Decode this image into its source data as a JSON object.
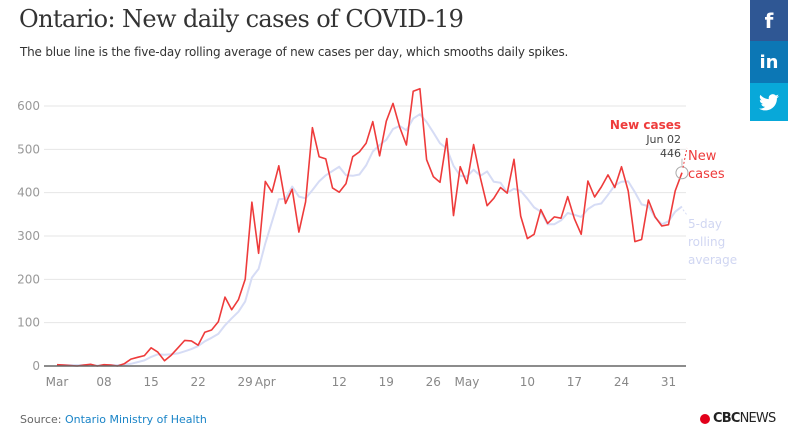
{
  "header": {
    "title": "Ontario: New daily cases of COVID-19",
    "subtitle": "The blue line is the five-day rolling average of new cases per day, which smooths daily spikes."
  },
  "share": [
    {
      "name": "facebook",
      "glyph": "f",
      "color": "#2f5794"
    },
    {
      "name": "linkedin",
      "glyph": "in",
      "color": "#0c77b5"
    },
    {
      "name": "twitter",
      "glyph": "twitter-bird",
      "color": "#08a8d9"
    }
  ],
  "footer": {
    "source_label": "Source: ",
    "source_link": "Ontario Ministry of Health",
    "logo_cbc": "CBC",
    "logo_news": "NEWS"
  },
  "tooltip": {
    "series": "New cases",
    "date": "Jun 02",
    "value": "446"
  },
  "colors": {
    "new_cases": "#ee3b3b",
    "rolling_average": "#d6dcf5",
    "grid": "#e6e6e6",
    "axis": "#666666"
  },
  "chart_data": {
    "type": "line",
    "title": "Ontario: New daily cases of COVID-19",
    "xlabel": "",
    "ylabel": "",
    "ylim": [
      0,
      600
    ],
    "yticks": [
      0,
      100,
      200,
      300,
      400,
      500,
      600
    ],
    "grid": true,
    "x_start": "Mar 01",
    "x_end": "Jun 02",
    "xtick_labels": [
      {
        "label": "Mar",
        "day_index": 0
      },
      {
        "label": "08",
        "day_index": 7
      },
      {
        "label": "15",
        "day_index": 14
      },
      {
        "label": "22",
        "day_index": 21
      },
      {
        "label": "29",
        "day_index": 28
      },
      {
        "label": "Apr",
        "day_index": 31
      },
      {
        "label": "12",
        "day_index": 42
      },
      {
        "label": "19",
        "day_index": 49
      },
      {
        "label": "26",
        "day_index": 56
      },
      {
        "label": "May",
        "day_index": 61
      },
      {
        "label": "10",
        "day_index": 70
      },
      {
        "label": "17",
        "day_index": 77
      },
      {
        "label": "24",
        "day_index": 84
      },
      {
        "label": "31",
        "day_index": 91
      }
    ],
    "series": [
      {
        "name": "New cases",
        "end_label": "New cases",
        "values": [
          3,
          2,
          1,
          0,
          2,
          4,
          0,
          3,
          2,
          0,
          5,
          16,
          20,
          24,
          42,
          32,
          12,
          25,
          42,
          59,
          58,
          48,
          78,
          83,
          102,
          159,
          130,
          153,
          200,
          378,
          260,
          426,
          401,
          462,
          375,
          408,
          309,
          379,
          550,
          483,
          478,
          411,
          401,
          421,
          483,
          494,
          514,
          564,
          485,
          565,
          606,
          551,
          510,
          634,
          640,
          476,
          437,
          424,
          525,
          347,
          460,
          421,
          511,
          434,
          370,
          387,
          412,
          399,
          477,
          346,
          294,
          304,
          361,
          329,
          344,
          341,
          391,
          340,
          304,
          427,
          390,
          413,
          441,
          412,
          460,
          404,
          287,
          292,
          383,
          344,
          323,
          326,
          404,
          446
        ]
      },
      {
        "name": "5-day rolling average",
        "end_label": "5-day rolling average",
        "values": [
          2,
          2,
          2,
          2,
          2,
          2,
          1,
          2,
          2,
          2,
          3,
          5,
          9,
          13,
          21,
          27,
          26,
          27,
          29,
          34,
          39,
          46,
          57,
          65,
          74,
          94,
          110,
          125,
          149,
          204,
          224,
          283,
          333,
          385,
          386,
          414,
          391,
          387,
          406,
          426,
          440,
          450,
          460,
          440,
          439,
          442,
          463,
          495,
          510,
          522,
          547,
          554,
          544,
          571,
          581,
          563,
          539,
          514,
          502,
          462,
          439,
          437,
          453,
          439,
          449,
          425,
          423,
          400,
          409,
          404,
          386,
          366,
          356,
          327,
          327,
          336,
          353,
          349,
          344,
          362,
          372,
          375,
          395,
          417,
          425,
          426,
          401,
          373,
          369,
          343,
          327,
          334,
          356,
          368
        ]
      }
    ],
    "annotations": [
      {
        "text": "New cases",
        "date": "Jun 02",
        "value": 446
      }
    ]
  }
}
